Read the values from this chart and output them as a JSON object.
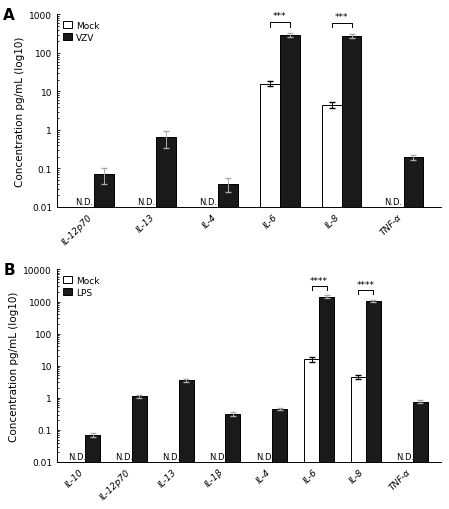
{
  "panel_A": {
    "label": "A",
    "categories": [
      "IL-12p70",
      "IL-13",
      "IL-4",
      "IL-6",
      "IL-8",
      "TNF-α"
    ],
    "mock_values": [
      null,
      null,
      null,
      16.0,
      4.5,
      null
    ],
    "mock_errors": [
      null,
      null,
      null,
      2.5,
      0.7,
      null
    ],
    "treat_values": [
      0.07,
      0.65,
      0.04,
      290.0,
      280.0,
      0.2
    ],
    "treat_errors": [
      0.03,
      0.3,
      0.015,
      35.0,
      30.0,
      0.03
    ],
    "nd_mock": [
      true,
      true,
      true,
      false,
      false,
      true
    ],
    "ylim": [
      0.01,
      1000
    ],
    "yticks": [
      0.01,
      0.1,
      1,
      10,
      100,
      1000
    ],
    "ytick_labels": [
      "0.01",
      "0.1",
      "1",
      "10",
      "100",
      "1000"
    ],
    "ylabel": "Concentration pg/mL (log10)",
    "legend_labels": [
      "Mock",
      "VZV"
    ],
    "sig_bracket1": {
      "i_mock": 3,
      "i_treat": 3,
      "label": "***"
    },
    "sig_bracket2": {
      "i_mock": 4,
      "i_treat": 4,
      "label": "***"
    }
  },
  "panel_B": {
    "label": "B",
    "categories": [
      "IL-10",
      "IL-12p70",
      "IL-13",
      "IL-1β",
      "IL-4",
      "IL-6",
      "IL-8",
      "TNF-α"
    ],
    "mock_values": [
      null,
      null,
      null,
      null,
      null,
      16.0,
      4.5,
      null
    ],
    "mock_errors": [
      null,
      null,
      null,
      null,
      null,
      2.5,
      0.7,
      null
    ],
    "treat_values": [
      0.07,
      1.1,
      3.5,
      0.32,
      0.45,
      1400.0,
      1050.0,
      0.75
    ],
    "treat_errors": [
      0.01,
      0.08,
      0.3,
      0.04,
      0.04,
      150.0,
      100.0,
      0.08
    ],
    "nd_mock": [
      true,
      true,
      true,
      true,
      true,
      false,
      false,
      true
    ],
    "ylim": [
      0.01,
      10000
    ],
    "yticks": [
      0.01,
      0.1,
      1,
      10,
      100,
      1000,
      10000
    ],
    "ytick_labels": [
      "0.01",
      "0.1",
      "1",
      "10",
      "100",
      "1000",
      "10000"
    ],
    "ylabel": "Concentration pg/mL (log10)",
    "legend_labels": [
      "Mock",
      "LPS"
    ],
    "sig_bracket1": {
      "i_mock": 5,
      "i_treat": 5,
      "label": "****"
    },
    "sig_bracket2": {
      "i_mock": 6,
      "i_treat": 6,
      "label": "****"
    }
  },
  "bar_width": 0.32,
  "mock_color": "#ffffff",
  "mock_edgecolor": "#000000",
  "treat_color": "#1a1a1a",
  "nd_fontsize": 6.0,
  "label_fontsize": 11,
  "tick_fontsize": 6.5,
  "ylabel_fontsize": 7.5
}
